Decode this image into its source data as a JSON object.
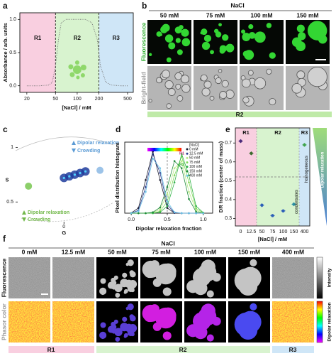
{
  "chart_data": [
    {
      "type": "line",
      "panel_label": "a",
      "x_label": "[NaCl] / mM",
      "y_label": "Absorbance / arb. units",
      "log_x": true,
      "line_style": "dotted",
      "color": "#777777",
      "x": [
        20,
        30,
        40,
        45,
        50,
        55,
        60,
        70,
        100,
        130,
        160,
        190,
        210,
        250,
        300,
        400,
        500
      ],
      "values": [
        0,
        0,
        0.01,
        0.05,
        0.3,
        0.7,
        0.95,
        1,
        1,
        1,
        0.95,
        0.7,
        0.3,
        0.05,
        0.01,
        0,
        0
      ],
      "xlim": [
        16,
        600
      ],
      "xticks": [
        20,
        50,
        100,
        200,
        500
      ],
      "ylim": [
        -0.1,
        1.1
      ],
      "yticks": [
        {
          "value": 0,
          "label": "0.0"
        },
        {
          "value": 0.5,
          "label": "0.5"
        },
        {
          "value": 1,
          "label": "1.0"
        }
      ],
      "regions": [
        "R1",
        "R2",
        "R3"
      ],
      "region_bounds": [
        50,
        200
      ],
      "region_colors": [
        "#f9cfe0",
        "#d8f3cf",
        "#cfe6f7"
      ]
    },
    {
      "type": "phasor",
      "panel_label": "c",
      "x_label": "G",
      "y_label": "S",
      "xlim": [
        -0.45,
        0.46
      ],
      "ylim": [
        0.3,
        1.1
      ],
      "xticks": [
        0
      ],
      "yticks": [
        1,
        0.5
      ],
      "series": [
        {
          "color": "#1f3c9c",
          "x": [
            0.0,
            0.05,
            0.1,
            0.15,
            0.2
          ],
          "y": [
            0.72,
            0.735,
            0.75,
            0.765,
            0.78
          ]
        },
        {
          "color": "#9cc3e8",
          "x": [
            0.335
          ],
          "y": [
            0.79
          ]
        },
        {
          "color": "#8ccf6a",
          "x": [
            -0.33
          ],
          "y": [
            0.645
          ]
        }
      ],
      "annotations": [
        {
          "text": "Dipolar relaxation",
          "color": "#5b9bd5",
          "direction": "up"
        },
        {
          "text": "Crowding",
          "color": "#5b9bd5",
          "direction": "down"
        },
        {
          "text": "Dipolar relaxation",
          "color": "#72b84a",
          "direction": "up"
        },
        {
          "text": "Crowding",
          "color": "#72b84a",
          "direction": "down"
        }
      ]
    },
    {
      "type": "line",
      "panel_label": "d",
      "x_label": "Dipolar relaxation fraction",
      "y_label": "Pixel distribution histogram",
      "markers": true,
      "x": [
        0,
        0.1,
        0.2,
        0.3,
        0.4,
        0.5,
        0.6,
        0.7,
        0.8,
        0.9,
        1
      ],
      "xlim": [
        -0.09,
        1.13
      ],
      "xticks": [
        {
          "value": 0,
          "label": "0.0"
        },
        {
          "value": 0.5,
          "label": "0.5"
        },
        {
          "value": 1,
          "label": "1.0"
        }
      ],
      "ylim": [
        0,
        15
      ],
      "divider": 0.5,
      "legend_title": "[NaCl]",
      "legend_groups": [
        "R1",
        "R2"
      ],
      "series": [
        {
          "name": "0 mM",
          "color": "#1a1a2e",
          "values": [
            0.05,
            1.1,
            7.0,
            13.0,
            7.0,
            1.1,
            0.05,
            0,
            0,
            0,
            0
          ]
        },
        {
          "name": "12.5 mM",
          "color": "#2c3e90",
          "values": [
            0,
            0.6,
            5.5,
            12.5,
            8.5,
            1.8,
            0.1,
            0,
            0,
            0,
            0
          ]
        },
        {
          "name": "50 mM",
          "color": "#b9e986",
          "values": [
            0,
            0,
            0,
            0.1,
            0.8,
            4.0,
            9.5,
            11.0,
            4.5,
            0.6,
            0
          ]
        },
        {
          "name": "75 mM",
          "color": "#7ed957",
          "values": [
            0,
            0,
            0,
            0,
            0.4,
            2.5,
            8.0,
            12.0,
            6.5,
            1.0,
            0.05
          ]
        },
        {
          "name": "100 mM",
          "color": "#33b249",
          "values": [
            0,
            0,
            0,
            0,
            0.2,
            1.5,
            6.5,
            12.5,
            8.0,
            1.5,
            0.1
          ]
        },
        {
          "name": "150 mM",
          "color": "#1f8a3a",
          "values": [
            0,
            0,
            0,
            0.2,
            1.2,
            5.5,
            11.0,
            9.5,
            3.0,
            0.3,
            0
          ]
        },
        {
          "name": "400 mM",
          "color": "#6cc4e8",
          "values": [
            0,
            0.4,
            4.5,
            11.5,
            9.5,
            2.5,
            0.2,
            0,
            0,
            0,
            0
          ]
        }
      ]
    },
    {
      "type": "errorbar",
      "panel_label": "e",
      "x_label": "[NaCl] / mM",
      "y_label": "DR fraction (center of mass)",
      "categories": [
        "0",
        "12.5",
        "50",
        "75",
        "100",
        "150",
        "400"
      ],
      "values": [
        0.71,
        0.645,
        0.37,
        0.315,
        0.34,
        0.375,
        0.69
      ],
      "errors": [
        0.01,
        0.01,
        0.01,
        0.008,
        0.008,
        0.01,
        0.01
      ],
      "colors": [
        "#4b2a7a",
        "#3d6b2f",
        "#2c5fb8",
        "#2c5fb8",
        "#2c5fb8",
        "#2b8fa3",
        "#3fa34d"
      ],
      "ylim": [
        0.26,
        0.78
      ],
      "yticks": [
        0.3,
        0.4,
        0.5,
        0.6,
        0.7
      ],
      "threshold": 0.52,
      "regions": [
        "R1",
        "R2",
        "R3"
      ],
      "region_sizes": [
        2,
        4,
        1
      ],
      "region_colors": [
        "#f9cfe0",
        "#d8f3cf",
        "#cfe6f7"
      ],
      "side_labels": [
        "condensates",
        "homogeneous"
      ],
      "gradient_label": "Dipolar relaxation"
    }
  ],
  "panel_b": {
    "label": "b",
    "header": "NaCl",
    "columns": [
      "50 mM",
      "75 mM",
      "100 mM",
      "150 mM"
    ],
    "rows": [
      "Fluorescence",
      "Bright-field"
    ],
    "region": "R2"
  },
  "panel_f": {
    "label": "f",
    "header": "NaCl",
    "columns": [
      "0 mM",
      "12.5 mM",
      "50 mM",
      "75 mM",
      "100 mM",
      "150 mM",
      "400 mM"
    ],
    "rows": [
      "Fluorescence",
      "Phasor color"
    ],
    "colorbars": [
      "Intensity",
      "Dipolar relaxation"
    ],
    "regions": [
      "R1",
      "R2",
      "R3"
    ]
  }
}
